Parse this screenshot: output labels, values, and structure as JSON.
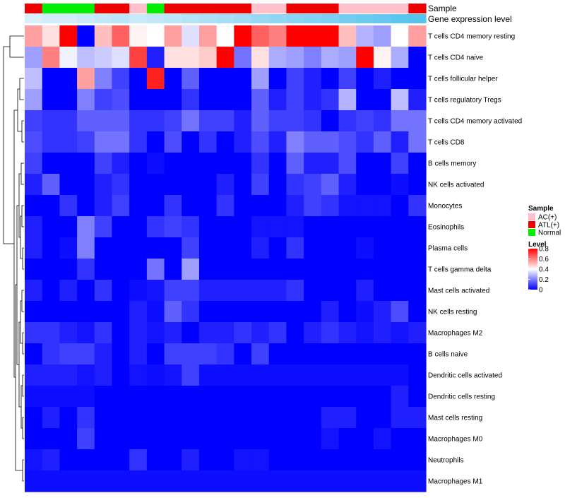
{
  "chart_data": {
    "type": "heatmap",
    "annotation_titles": {
      "sample": "Sample",
      "level": "Gene expression level"
    },
    "sample_groups": [
      "ATL(+)",
      "Normal",
      "Normal",
      "Normal",
      "ATL(+)",
      "ATL(+)",
      "AC(+)",
      "Normal",
      "ATL(+)",
      "ATL(+)",
      "ATL(+)",
      "ATL(+)",
      "ATL(+)",
      "AC(+)",
      "AC(+)",
      "ATL(+)",
      "ATL(+)",
      "ATL(+)",
      "AC(+)",
      "AC(+)",
      "AC(+)",
      "AC(+)",
      "ATL(+)"
    ],
    "expression_level": [
      0.05,
      0.1,
      0.1,
      0.15,
      0.2,
      0.25,
      0.15,
      0.2,
      0.25,
      0.3,
      0.35,
      0.4,
      0.45,
      0.5,
      0.55,
      0.6,
      0.65,
      0.7,
      0.75,
      0.8,
      0.85,
      0.9,
      0.95
    ],
    "rows": [
      "T cells CD4 memory resting",
      "T cells CD4 naive",
      "T cells follicular helper",
      "T cells regulatory  Tregs",
      "T cells CD4 memory activated",
      "T cells CD8",
      "B cells memory",
      "NK cells activated",
      "Monocytes",
      "Eosinophils",
      "Plasma cells",
      "T cells gamma delta",
      "Mast cells activated",
      "NK cells resting",
      "Macrophages M2",
      "B cells naive",
      "Dendritic cells activated",
      "Dendritic cells resting",
      "Mast cells resting",
      "Macrophages M0",
      "Neutrophils",
      "Macrophages M1"
    ],
    "values": [
      [
        0.55,
        0.45,
        0.8,
        0.0,
        0.5,
        0.65,
        0.42,
        0.4,
        0.55,
        0.35,
        0.55,
        0.4,
        0.8,
        0.65,
        0.6,
        0.8,
        0.8,
        0.8,
        0.5,
        0.28,
        0.25,
        0.4,
        0.55
      ],
      [
        0.25,
        0.6,
        0.38,
        0.3,
        0.32,
        0.35,
        0.7,
        0.05,
        0.45,
        0.45,
        0.48,
        0.8,
        0.18,
        0.45,
        0.27,
        0.25,
        0.2,
        0.27,
        0.25,
        0.8,
        0.42,
        0.27,
        0.0
      ],
      [
        0.3,
        0.0,
        0.0,
        0.55,
        0.2,
        0.1,
        0.0,
        0.75,
        0.0,
        0.15,
        0.0,
        0.0,
        0.0,
        0.25,
        0.0,
        0.1,
        0.05,
        0.0,
        0.1,
        0.0,
        0.05,
        0.0,
        0.0
      ],
      [
        0.25,
        0.0,
        0.0,
        0.2,
        0.1,
        0.12,
        0.0,
        0.0,
        0.0,
        0.08,
        0.0,
        0.0,
        0.0,
        0.15,
        0.05,
        0.1,
        0.05,
        0.08,
        0.28,
        0.0,
        0.0,
        0.3,
        0.05
      ],
      [
        0.1,
        0.08,
        0.08,
        0.15,
        0.15,
        0.15,
        0.08,
        0.08,
        0.1,
        0.18,
        0.1,
        0.1,
        0.05,
        0.15,
        0.1,
        0.1,
        0.08,
        0.0,
        0.08,
        0.1,
        0.08,
        0.18,
        0.18
      ],
      [
        0.12,
        0.08,
        0.08,
        0.1,
        0.18,
        0.18,
        0.08,
        0.0,
        0.12,
        0.0,
        0.08,
        0.0,
        0.05,
        0.12,
        0.05,
        0.2,
        0.15,
        0.15,
        0.12,
        0.08,
        0.15,
        0.05,
        0.18
      ],
      [
        0.1,
        0.0,
        0.0,
        0.0,
        0.1,
        0.05,
        0.0,
        0.02,
        0.0,
        0.0,
        0.0,
        0.0,
        0.0,
        0.08,
        0.0,
        0.15,
        0.05,
        0.05,
        0.12,
        0.0,
        0.0,
        0.1,
        0.0
      ],
      [
        0.05,
        0.15,
        0.0,
        0.0,
        0.05,
        0.08,
        0.0,
        0.0,
        0.0,
        0.0,
        0.0,
        0.05,
        0.0,
        0.1,
        0.0,
        0.08,
        0.1,
        0.15,
        0.05,
        0.0,
        0.0,
        0.02,
        0.0
      ],
      [
        0.0,
        0.0,
        0.08,
        0.0,
        0.05,
        0.1,
        0.0,
        0.0,
        0.08,
        0.0,
        0.0,
        0.08,
        0.0,
        0.0,
        0.0,
        0.05,
        0.1,
        0.08,
        0.03,
        0.03,
        0.03,
        0.0,
        0.08
      ],
      [
        0.05,
        0.0,
        0.0,
        0.2,
        0.1,
        0.0,
        0.0,
        0.08,
        0.1,
        0.08,
        0.0,
        0.0,
        0.0,
        0.03,
        0.03,
        0.03,
        0.0,
        0.0,
        0.0,
        0.0,
        0.0,
        0.0,
        0.0
      ],
      [
        0.05,
        0.0,
        0.02,
        0.2,
        0.0,
        0.0,
        0.0,
        0.0,
        0.0,
        0.1,
        0.0,
        0.0,
        0.0,
        0.05,
        0.0,
        0.08,
        0.0,
        0.0,
        0.0,
        0.02,
        0.0,
        0.0,
        0.0
      ],
      [
        0.0,
        0.0,
        0.0,
        0.08,
        0.0,
        0.0,
        0.0,
        0.18,
        0.0,
        0.25,
        0.0,
        0.0,
        0.0,
        0.0,
        0.0,
        0.0,
        0.0,
        0.0,
        0.0,
        0.0,
        0.0,
        0.0,
        0.0
      ],
      [
        0.05,
        0.0,
        0.05,
        0.0,
        0.08,
        0.0,
        0.02,
        0.03,
        0.1,
        0.1,
        0.05,
        0.05,
        0.05,
        0.05,
        0.05,
        0.08,
        0.0,
        0.0,
        0.0,
        0.05,
        0.0,
        0.0,
        0.0
      ],
      [
        0.0,
        0.0,
        0.0,
        0.0,
        0.0,
        0.0,
        0.05,
        0.02,
        0.15,
        0.08,
        0.0,
        0.0,
        0.0,
        0.0,
        0.0,
        0.0,
        0.0,
        0.05,
        0.0,
        0.02,
        0.05,
        0.12,
        0.0
      ],
      [
        0.08,
        0.08,
        0.05,
        0.03,
        0.08,
        0.0,
        0.05,
        0.03,
        0.05,
        0.0,
        0.05,
        0.05,
        0.08,
        0.05,
        0.08,
        0.0,
        0.05,
        0.08,
        0.05,
        0.03,
        0.05,
        0.03,
        0.05
      ],
      [
        0.0,
        0.08,
        0.1,
        0.1,
        0.05,
        0.0,
        0.05,
        0.0,
        0.1,
        0.1,
        0.1,
        0.08,
        0.0,
        0.1,
        0.0,
        0.0,
        0.0,
        0.0,
        0.0,
        0.0,
        0.0,
        0.0,
        0.0
      ],
      [
        0.05,
        0.05,
        0.05,
        0.03,
        0.05,
        0.0,
        0.03,
        0.02,
        0.03,
        0.1,
        0.02,
        0.02,
        0.02,
        0.02,
        0.02,
        0.02,
        0.02,
        0.02,
        0.02,
        0.02,
        0.02,
        0.02,
        0.0
      ],
      [
        0.02,
        0.02,
        0.02,
        0.02,
        0.0,
        0.0,
        0.0,
        0.0,
        0.0,
        0.0,
        0.0,
        0.0,
        0.0,
        0.0,
        0.0,
        0.0,
        0.0,
        0.0,
        0.0,
        0.0,
        0.0,
        0.05,
        0.0
      ],
      [
        0.0,
        0.05,
        0.0,
        0.08,
        0.0,
        0.0,
        0.0,
        0.0,
        0.0,
        0.0,
        0.0,
        0.0,
        0.0,
        0.0,
        0.0,
        0.0,
        0.0,
        0.05,
        0.05,
        0.0,
        0.0,
        0.05,
        0.05
      ],
      [
        0.0,
        0.0,
        0.0,
        0.1,
        0.0,
        0.0,
        0.0,
        0.0,
        0.0,
        0.0,
        0.0,
        0.0,
        0.0,
        0.0,
        0.0,
        0.0,
        0.0,
        0.03,
        0.0,
        0.0,
        0.03,
        0.0,
        0.0
      ],
      [
        0.03,
        0.05,
        0.0,
        0.0,
        0.0,
        0.0,
        0.08,
        0.0,
        0.0,
        0.05,
        0.0,
        0.0,
        0.03,
        0.03,
        0.0,
        0.0,
        0.0,
        0.0,
        0.0,
        0.0,
        0.0,
        0.0,
        0.0
      ],
      [
        0.02,
        0.02,
        0.02,
        0.02,
        0.02,
        0.02,
        0.02,
        0.02,
        0.02,
        0.02,
        0.02,
        0.02,
        0.02,
        0.02,
        0.02,
        0.02,
        0.02,
        0.02,
        0.02,
        0.02,
        0.02,
        0.02,
        0.02
      ]
    ],
    "legend": {
      "sample_title": "Sample",
      "sample_entries": [
        {
          "label": "AC(+)",
          "color": "#ffc0cb"
        },
        {
          "label": "ATL(+)",
          "color": "#ee0000"
        },
        {
          "label": "Normal",
          "color": "#00ee00"
        }
      ],
      "level_title": "Level",
      "level_ticks": [
        0.8,
        0.6,
        0.4,
        0.2,
        0
      ],
      "level_range": [
        0,
        0.8
      ]
    },
    "colors": {
      "low": "#0000ff",
      "mid": "#ffffff",
      "high": "#ff0000",
      "expression_low": "#dff1fb",
      "expression_high": "#4fc1ee"
    }
  }
}
